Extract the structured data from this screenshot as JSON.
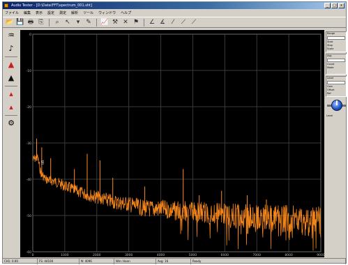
{
  "window": {
    "title": "Audio Tester - [D:\\Data\\FFT\\spectrum_001.sht]",
    "buttons": [
      "_",
      "□",
      "x"
    ]
  },
  "menu": {
    "items": [
      {
        "label": "ファイル"
      },
      {
        "label": "編集"
      },
      {
        "label": "表示"
      },
      {
        "label": "設定"
      },
      {
        "label": "測定"
      },
      {
        "label": "解析"
      },
      {
        "label": "ツール"
      },
      {
        "label": "ウィンドウ"
      },
      {
        "label": "ヘルプ"
      }
    ]
  },
  "toolbar": {
    "buttons": [
      {
        "icon": "open-icon",
        "glyph": "📂"
      },
      {
        "icon": "save-icon",
        "glyph": "💾"
      },
      {
        "icon": "print-icon",
        "glyph": "🖶"
      },
      {
        "icon": "copy-icon",
        "glyph": "⎘"
      },
      {
        "icon": "zoom-icon",
        "glyph": "⌕"
      },
      {
        "icon": "cursor-icon",
        "glyph": "↖"
      },
      {
        "icon": "marker-icon",
        "glyph": "▾"
      },
      {
        "icon": "pen-icon",
        "glyph": "✎"
      },
      {
        "icon": "chart-icon",
        "glyph": "📈"
      },
      {
        "icon": "measure-icon",
        "glyph": "⚒"
      },
      {
        "icon": "cross-icon",
        "glyph": "✕"
      },
      {
        "icon": "pick-icon",
        "glyph": "⚑"
      },
      {
        "icon": "line-a-icon",
        "glyph": "∠"
      },
      {
        "icon": "line-b-icon",
        "glyph": "∡"
      },
      {
        "icon": "line-c-icon",
        "glyph": "⁄"
      },
      {
        "icon": "line-d-icon",
        "glyph": "⟋"
      },
      {
        "icon": "line-e-icon",
        "glyph": "⟋"
      }
    ]
  },
  "lefttools": [
    {
      "icon": "waveform-icon",
      "glyph": "♒"
    },
    {
      "icon": "spectrum-icon",
      "glyph": "♪"
    },
    {
      "icon": "red-probe-icon",
      "glyph": "▲"
    },
    {
      "icon": "black-probe-icon",
      "glyph": "▲"
    },
    {
      "icon": "red-marker-icon",
      "glyph": "▴"
    },
    {
      "icon": "red-marker-2-icon",
      "glyph": "▴"
    },
    {
      "icon": "settings-icon",
      "glyph": "⚙"
    }
  ],
  "right_panel": {
    "group1": [
      "Range",
      "Start",
      "Stop",
      "Scale"
    ],
    "group2": [
      "Avg",
      "Count",
      "Mode"
    ],
    "group3": [
      "Level",
      "Gain",
      "Offset",
      "Ref"
    ],
    "knob_label": "Level"
  },
  "plot": {
    "bg": "#000000",
    "grid_color": "#3a3a3a",
    "trace_color": "#ff8c1a"
  },
  "chart_data": {
    "type": "line",
    "xlim": [
      0,
      9000
    ],
    "grid": true,
    "ylabel": "dB",
    "x_ticks": [
      0,
      1000,
      2000,
      3000,
      4000,
      5000,
      6000,
      7000,
      8000,
      9000
    ],
    "y_ticks": [
      "0",
      "-10",
      "-20",
      "-30",
      "-40",
      "-50",
      "-60"
    ],
    "series": [
      {
        "envelope_x": [
          0,
          150,
          250,
          400,
          700,
          1000,
          1500,
          2000,
          2500,
          3000,
          3500,
          4000,
          4500,
          5000,
          5500,
          6000,
          6500,
          7000,
          7500,
          8000,
          8500,
          9000
        ],
        "envelope_y": [
          0.57,
          0.56,
          0.63,
          0.66,
          0.67,
          0.69,
          0.72,
          0.74,
          0.76,
          0.77,
          0.79,
          0.79,
          0.8,
          0.8,
          0.81,
          0.81,
          0.82,
          0.82,
          0.83,
          0.83,
          0.84,
          0.84
        ],
        "peaks_x": [
          120,
          280,
          560,
          1300,
          1700,
          2100,
          2500,
          3500,
          4700,
          5200,
          5900,
          6700,
          7300
        ],
        "peaks_y": [
          0.48,
          0.52,
          0.57,
          0.62,
          0.55,
          0.58,
          0.66,
          0.7,
          0.62,
          0.74,
          0.72,
          0.74,
          0.76
        ]
      }
    ]
  },
  "status": {
    "cells": [
      "CH1: 0.00",
      "FS: 44100",
      "N: 4096",
      "Win: Hann",
      "Avg: 16",
      "Ready"
    ]
  }
}
